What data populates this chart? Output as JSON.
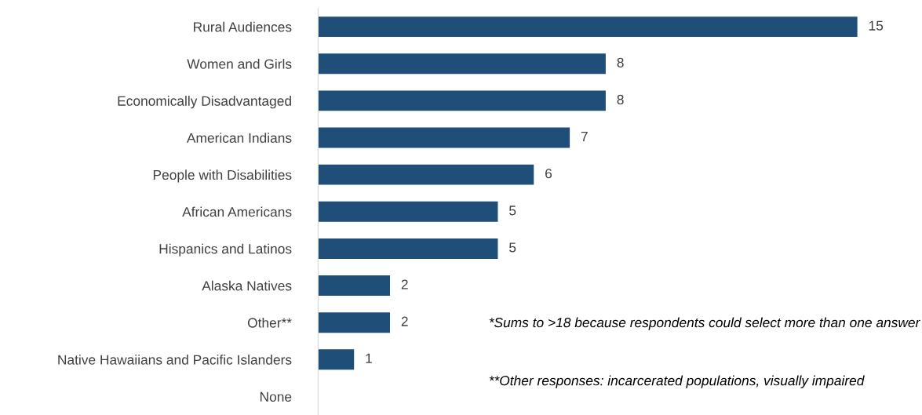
{
  "chart_data": {
    "type": "bar",
    "orientation": "horizontal",
    "categories": [
      "Rural Audiences",
      "Women and Girls",
      "Economically Disadvantaged",
      "American Indians",
      "People with Disabilities",
      "African Americans",
      "Hispanics and Latinos",
      "Alaska Natives",
      "Other**",
      "Native Hawaiians and Pacific Islanders",
      "None"
    ],
    "values": [
      15,
      8,
      8,
      7,
      6,
      5,
      5,
      2,
      2,
      1,
      0
    ],
    "value_labels": [
      "15",
      "8",
      "8",
      "7",
      "6",
      "5",
      "5",
      "2",
      "2",
      "1",
      null
    ],
    "color": "#1f4e79",
    "tick_labels": "y",
    "grid": false,
    "annotations": [
      "*Sums to >18 because respondents could select more than one answer",
      "**Other responses: incarcerated populations, visually impaired"
    ]
  }
}
